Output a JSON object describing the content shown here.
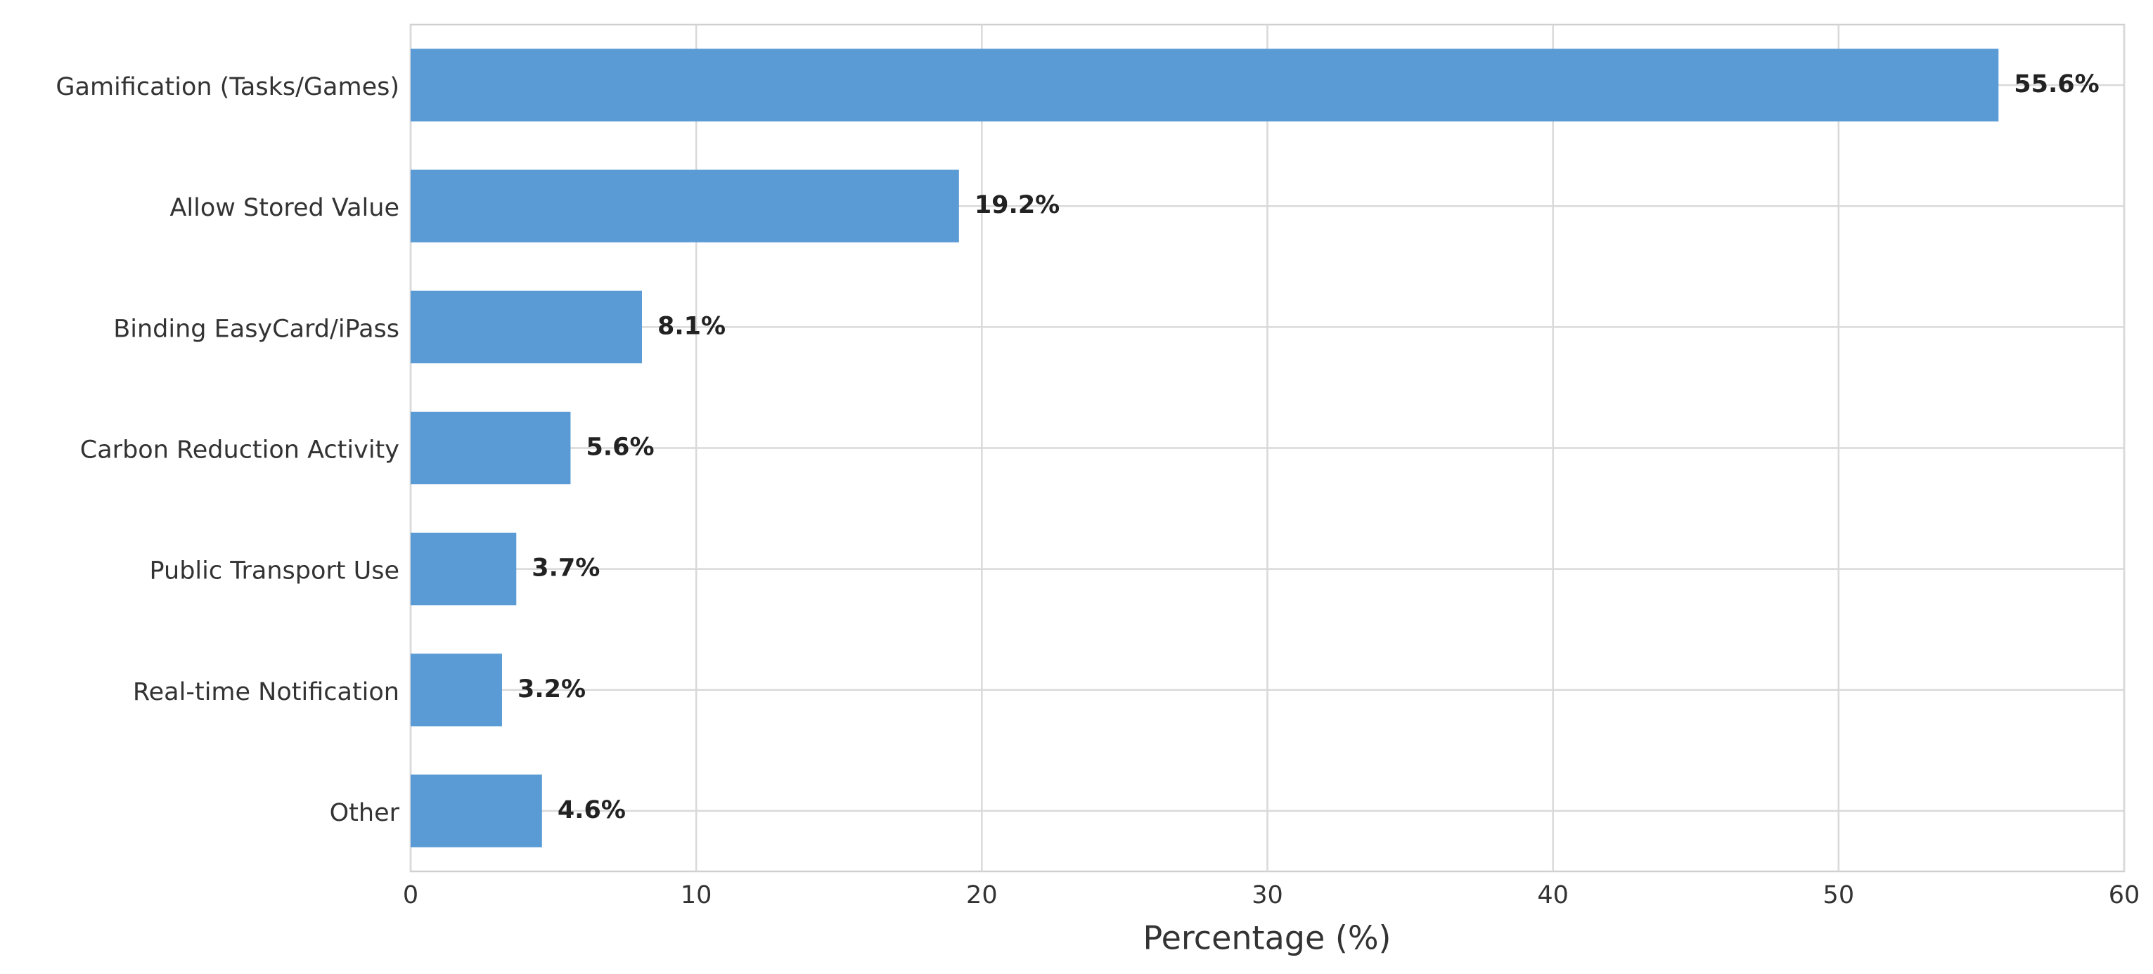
{
  "chart_data": {
    "type": "bar",
    "orientation": "horizontal",
    "categories": [
      "Gamification (Tasks/Games)",
      "Allow Stored Value",
      "Binding EasyCard/iPass",
      "Carbon Reduction Activity",
      "Public Transport Use",
      "Real-time Notification",
      "Other"
    ],
    "values": [
      55.6,
      19.2,
      8.1,
      5.6,
      3.7,
      3.2,
      4.6
    ],
    "value_labels": [
      "55.6%",
      "19.2%",
      "8.1%",
      "5.6%",
      "3.7%",
      "3.2%",
      "4.6%"
    ],
    "color": "#5b9bd5",
    "xlabel": "Percentage (%)",
    "xlim": [
      0,
      60
    ],
    "xticks": [
      0,
      10,
      20,
      30,
      40,
      50,
      60
    ],
    "grid": true
  }
}
